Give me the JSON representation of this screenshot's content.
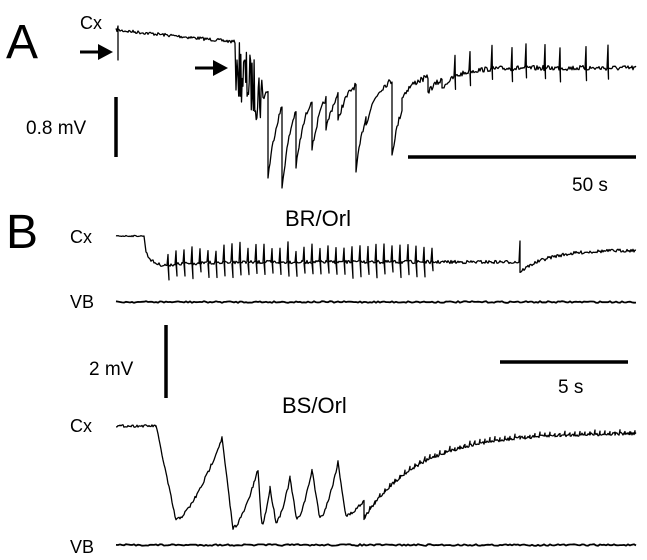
{
  "panels": [
    {
      "letter": "A",
      "traces": [
        {
          "label": "Cx"
        }
      ],
      "voltage_scale": "0.8 mV",
      "time_scale": "50 s"
    },
    {
      "letter": "B",
      "conditions": [
        {
          "title": "BR/Orl",
          "traces": [
            {
              "label": "Cx"
            },
            {
              "label": "VB"
            }
          ]
        },
        {
          "title": "BS/Orl",
          "traces": [
            {
              "label": "Cx"
            },
            {
              "label": "VB"
            }
          ]
        }
      ],
      "voltage_scale": "2 mV",
      "time_scale": "5 s"
    }
  ],
  "colors": {
    "trace": "#000000",
    "background": "#ffffff"
  }
}
